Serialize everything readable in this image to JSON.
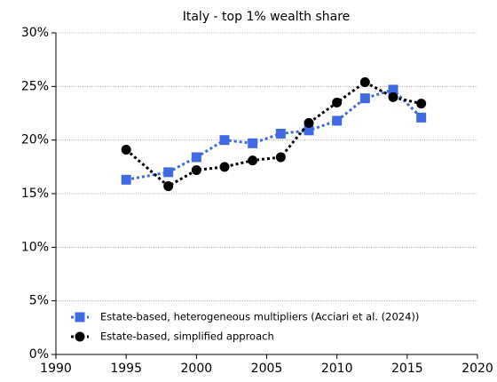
{
  "chart_data": {
    "type": "line",
    "title": "Italy - top 1% wealth share",
    "x": [
      1995,
      1998,
      2000,
      2002,
      2004,
      2006,
      2008,
      2010,
      2012,
      2014,
      2016
    ],
    "series": [
      {
        "name": "Estate-based, heterogeneous multipliers (Acciari et al. (2024))",
        "color": "#4169e1",
        "marker": "square",
        "values": [
          16.3,
          17.0,
          18.4,
          20.0,
          19.7,
          20.6,
          20.9,
          21.8,
          23.9,
          24.7,
          22.1
        ]
      },
      {
        "name": "Estate-based, simplified approach",
        "color": "#000000",
        "marker": "circle",
        "values": [
          19.1,
          15.7,
          17.2,
          17.5,
          18.1,
          18.4,
          21.6,
          23.5,
          25.4,
          24.0,
          23.4
        ]
      }
    ],
    "xlim": [
      1990,
      2020
    ],
    "xticks": [
      1990,
      1995,
      2000,
      2005,
      2010,
      2015,
      2020
    ],
    "ylim": [
      0,
      30
    ],
    "yticks": [
      {
        "value": 0,
        "label": "0%"
      },
      {
        "value": 5,
        "label": "5%"
      },
      {
        "value": 10,
        "label": "10%"
      },
      {
        "value": 15,
        "label": "15%"
      },
      {
        "value": 20,
        "label": "20%"
      },
      {
        "value": 25,
        "label": "25%"
      },
      {
        "value": 30,
        "label": "30%"
      }
    ],
    "grid": true,
    "legend": "lower left"
  }
}
